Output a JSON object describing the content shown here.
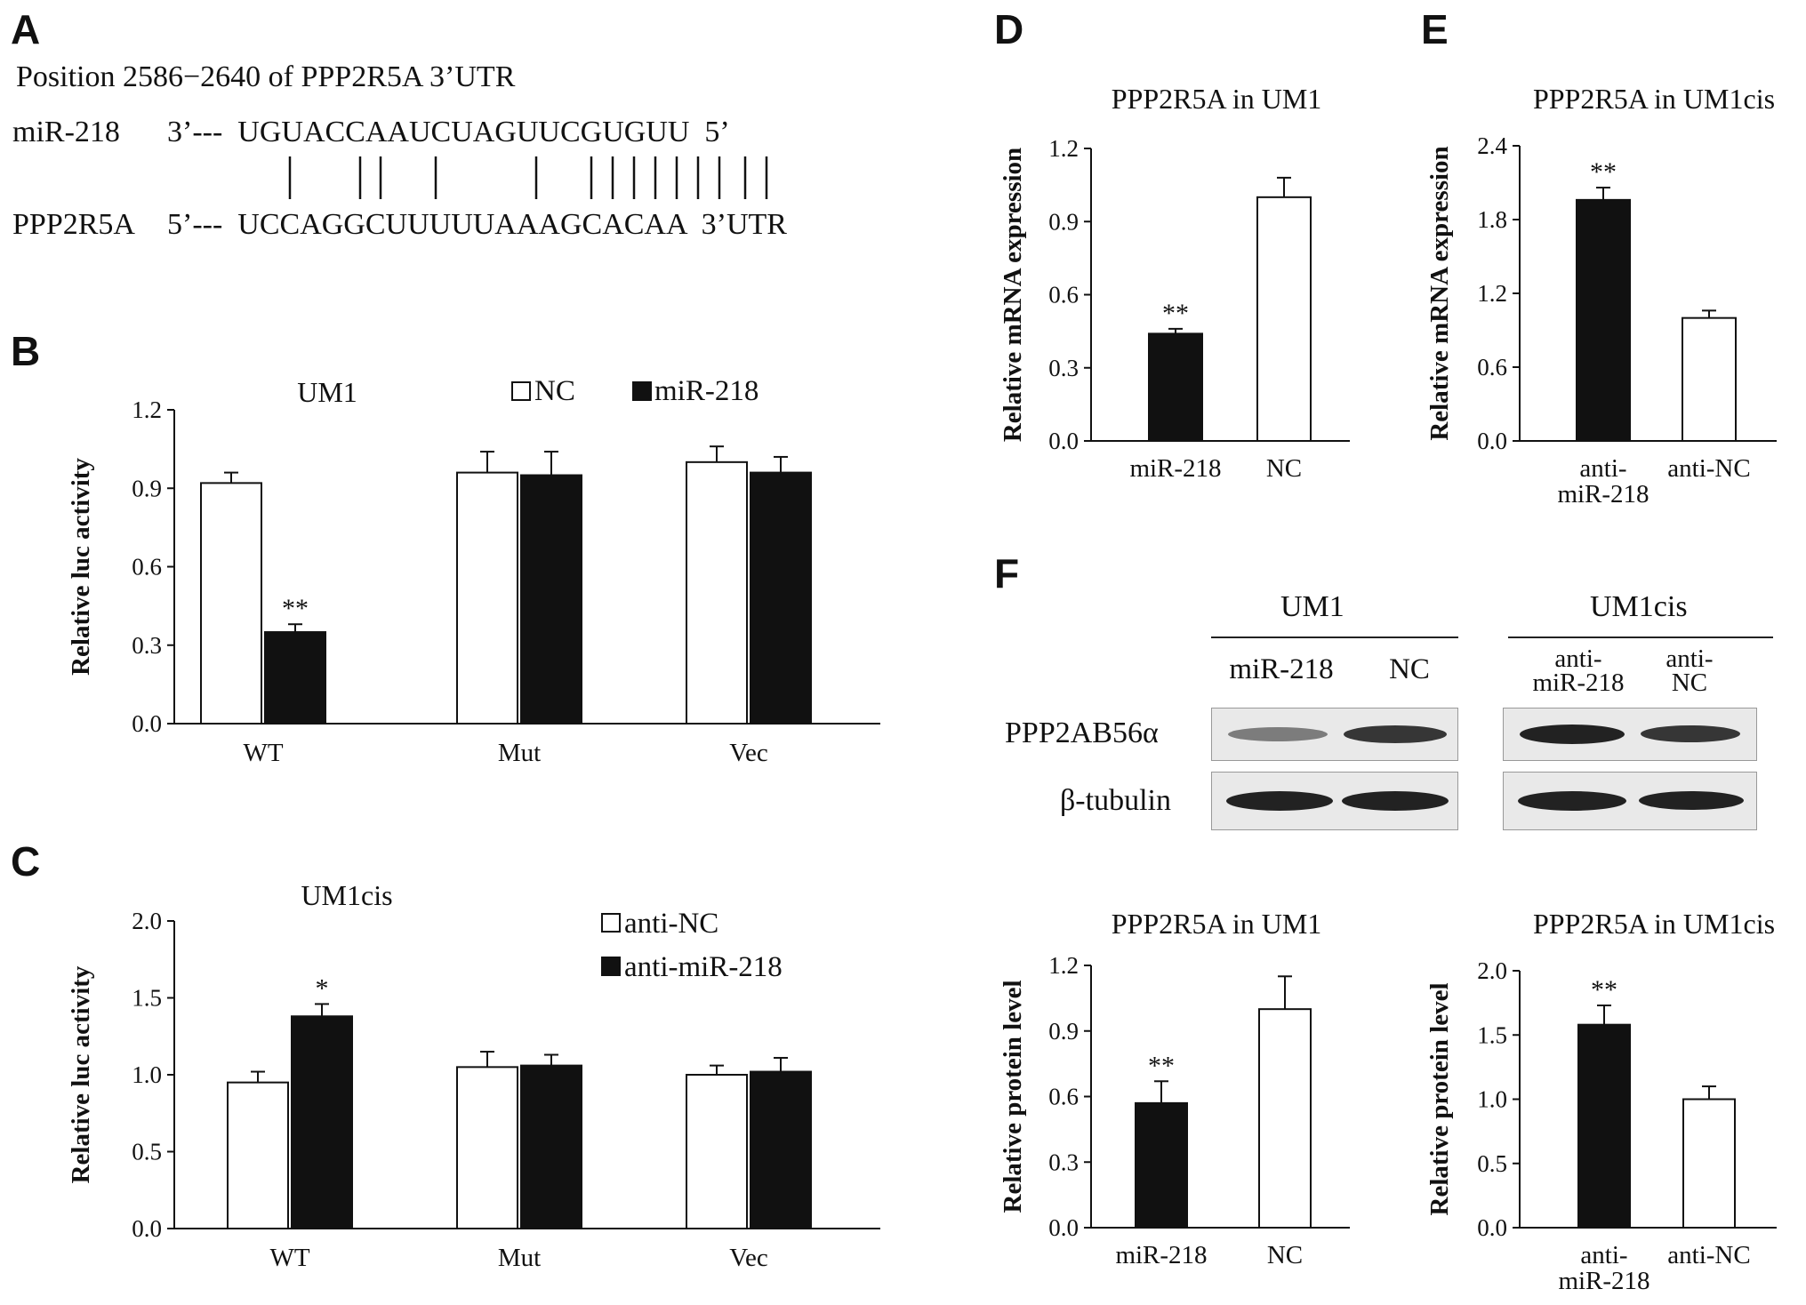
{
  "panels": {
    "A": {
      "letter": "A",
      "position_text": "Position 2586−2640 of PPP2R5A 3’UTR",
      "mirna_label": "miR-218",
      "mirna_seq": "3’---  UGUACCAAUCUAGUUCGUGUU  5’",
      "target_label": "PPP2R5A",
      "target_seq": "5’---  UCCAGGCUUUUUAAAGCACAA  3’UTR"
    },
    "B": {
      "letter": "B"
    },
    "C": {
      "letter": "C"
    },
    "D": {
      "letter": "D"
    },
    "E": {
      "letter": "E"
    },
    "F": {
      "letter": "F",
      "group_um1": "UM1",
      "group_um1cis": "UM1cis",
      "lanes_um1": [
        "miR-218",
        "NC"
      ],
      "lanes_um1cis": [
        "anti-\nmiR-218",
        "anti-\nNC"
      ],
      "protein_label": "PPP2AB56α",
      "loading_label": "β-tubulin"
    }
  },
  "chart_data": [
    {
      "id": "B",
      "type": "bar",
      "title": "UM1",
      "ylabel": "Relative luc activity",
      "categories": [
        "WT",
        "Mut",
        "Vec"
      ],
      "ylim": [
        0,
        1.2
      ],
      "yticks": [
        "0.0",
        "0.3",
        "0.6",
        "0.9",
        "1.2"
      ],
      "legend": "top-right",
      "series": [
        {
          "name": "NC",
          "color": "#ffffff",
          "values": [
            0.92,
            0.96,
            1.0
          ],
          "errors": [
            0.04,
            0.08,
            0.06
          ]
        },
        {
          "name": "miR-218",
          "color": "#111111",
          "values": [
            0.35,
            0.95,
            0.96
          ],
          "errors": [
            0.03,
            0.09,
            0.06
          ]
        }
      ],
      "annotations": [
        {
          "category": "WT",
          "series": 1,
          "text": "**"
        }
      ]
    },
    {
      "id": "C",
      "type": "bar",
      "title": "UM1cis",
      "ylabel": "Relative luc activity",
      "categories": [
        "WT",
        "Mut",
        "Vec"
      ],
      "ylim": [
        0,
        2.0
      ],
      "yticks": [
        "0.0",
        "0.5",
        "1.0",
        "1.5",
        "2.0"
      ],
      "legend": "top-right",
      "series": [
        {
          "name": "anti-NC",
          "color": "#ffffff",
          "values": [
            0.95,
            1.05,
            1.0
          ],
          "errors": [
            0.07,
            0.1,
            0.06
          ]
        },
        {
          "name": "anti-miR-218",
          "color": "#111111",
          "values": [
            1.38,
            1.06,
            1.02
          ],
          "errors": [
            0.08,
            0.07,
            0.09
          ]
        }
      ],
      "annotations": [
        {
          "category": "WT",
          "series": 1,
          "text": "*"
        }
      ]
    },
    {
      "id": "D",
      "type": "bar",
      "title": "PPP2R5A in UM1",
      "ylabel": "Relative mRNA expression",
      "categories": [
        "miR-218",
        "NC"
      ],
      "ylim": [
        0,
        1.2
      ],
      "yticks": [
        "0.0",
        "0.3",
        "0.6",
        "0.9",
        "1.2"
      ],
      "values": [
        0.44,
        1.0
      ],
      "errors": [
        0.02,
        0.08
      ],
      "colors": [
        "#111111",
        "#ffffff"
      ],
      "annotations": [
        {
          "index": 0,
          "text": "**"
        }
      ]
    },
    {
      "id": "E",
      "type": "bar",
      "title": "PPP2R5A in UM1cis",
      "ylabel": "Relative mRNA expression",
      "categories": [
        "anti-\nmiR-218",
        "anti-NC"
      ],
      "ylim": [
        0,
        2.4
      ],
      "yticks": [
        "0.0",
        "0.6",
        "1.2",
        "1.8",
        "2.4"
      ],
      "values": [
        1.96,
        1.0
      ],
      "errors": [
        0.1,
        0.06
      ],
      "colors": [
        "#111111",
        "#ffffff"
      ],
      "annotations": [
        {
          "index": 0,
          "text": "**"
        }
      ]
    },
    {
      "id": "F1",
      "type": "bar",
      "title": "PPP2R5A in UM1",
      "ylabel": "Relative protein level",
      "categories": [
        "miR-218",
        "NC"
      ],
      "ylim": [
        0,
        1.2
      ],
      "yticks": [
        "0.0",
        "0.3",
        "0.6",
        "0.9",
        "1.2"
      ],
      "values": [
        0.57,
        1.0
      ],
      "errors": [
        0.1,
        0.15
      ],
      "colors": [
        "#111111",
        "#ffffff"
      ],
      "annotations": [
        {
          "index": 0,
          "text": "**"
        }
      ]
    },
    {
      "id": "F2",
      "type": "bar",
      "title": "PPP2R5A in UM1cis",
      "ylabel": "Relative protein level",
      "categories": [
        "anti-\nmiR-218",
        "anti-NC"
      ],
      "ylim": [
        0,
        2.0
      ],
      "yticks": [
        "0.0",
        "0.5",
        "1.0",
        "1.5",
        "2.0"
      ],
      "values": [
        1.58,
        1.0
      ],
      "errors": [
        0.15,
        0.1
      ],
      "colors": [
        "#111111",
        "#ffffff"
      ],
      "annotations": [
        {
          "index": 0,
          "text": "**"
        }
      ]
    }
  ]
}
